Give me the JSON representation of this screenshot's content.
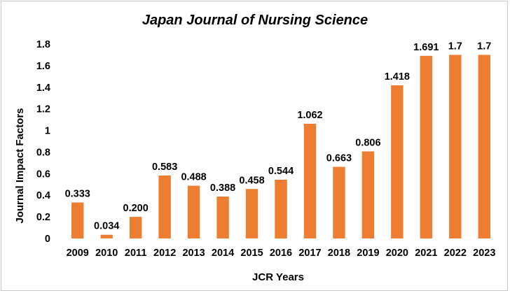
{
  "chart_data": {
    "type": "bar",
    "title": "Japan Journal of Nursing Science",
    "xlabel": "JCR Years",
    "ylabel": "Journal Impact Factors",
    "categories": [
      "2009",
      "2010",
      "2011",
      "2012",
      "2013",
      "2014",
      "2015",
      "2016",
      "2017",
      "2018",
      "2019",
      "2020",
      "2021",
      "2022",
      "2023"
    ],
    "values": [
      0.333,
      0.034,
      0.2,
      0.583,
      0.488,
      0.388,
      0.458,
      0.544,
      1.062,
      0.663,
      0.806,
      1.418,
      1.691,
      1.7,
      1.7
    ],
    "data_labels": [
      "0.333",
      "0.034",
      "0.200",
      "0.583",
      "0.488",
      "0.388",
      "0.458",
      "0.544",
      "1.062",
      "0.663",
      "0.806",
      "1.418",
      "1.691",
      "1.7",
      "1.7"
    ],
    "yticks": [
      "0",
      "0.2",
      "0.4",
      "0.6",
      "0.8",
      "1",
      "1.2",
      "1.4",
      "1.6",
      "1.8"
    ],
    "ylim": [
      0,
      1.8
    ],
    "grid": false,
    "legend": "none",
    "bar_color": "#ed7d31"
  }
}
